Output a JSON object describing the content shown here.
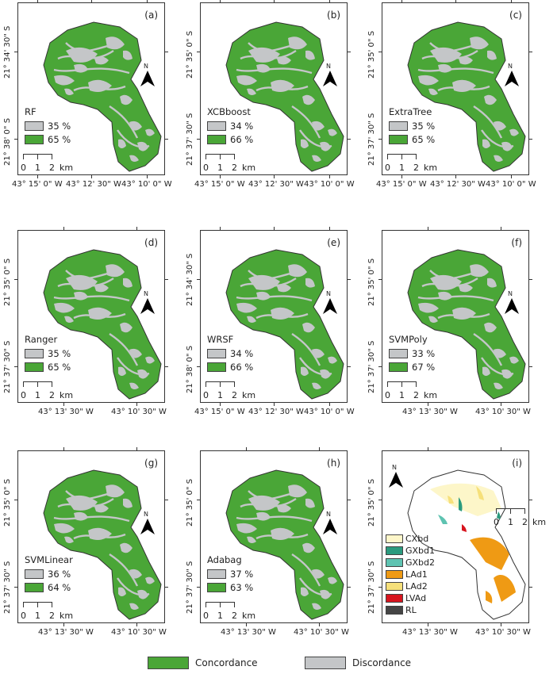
{
  "colors": {
    "concordance": "#4aa637",
    "discordance": "#c4c6c8"
  },
  "panels": [
    {
      "id": "a",
      "label": "(a)",
      "model": "RF",
      "disc": "35 %",
      "conc": "65 %",
      "ylabels": [
        "21° 34' 30\" S",
        "21° 38' 0\" S"
      ],
      "xlabels": [
        "43° 15' 0\" W",
        "43° 12' 30\" W",
        "43° 10' 0\" W"
      ]
    },
    {
      "id": "b",
      "label": "(b)",
      "model": "XCBboost",
      "disc": "34 %",
      "conc": "66 %",
      "ylabels": [
        "21° 35' 0\" S",
        "21° 37' 30\" S"
      ],
      "xlabels": [
        "43° 15' 0\" W",
        "43° 12' 30\" W",
        "43° 10' 0\" W"
      ]
    },
    {
      "id": "c",
      "label": "(c)",
      "model": "ExtraTree",
      "disc": "35 %",
      "conc": "65 %",
      "ylabels": [
        "21° 35' 0\" S",
        "21° 37' 30\" S"
      ],
      "xlabels": [
        "43° 15' 0\" W",
        "43° 12' 30\" W",
        "43° 10' 0\" W"
      ]
    },
    {
      "id": "d",
      "label": "(d)",
      "model": "Ranger",
      "disc": "35 %",
      "conc": "65 %",
      "ylabels": [
        "21° 35' 0\" S",
        "21° 37' 30\" S"
      ],
      "xlabels": [
        "43° 13' 30\" W",
        "43° 10' 30\" W"
      ]
    },
    {
      "id": "e",
      "label": "(e)",
      "model": "WRSF",
      "disc": "34 %",
      "conc": "66 %",
      "ylabels": [
        "21° 34' 30\" S",
        "21° 38' 0\" S"
      ],
      "xlabels": [
        "43° 15' 0\" W",
        "43° 12' 30\" W",
        "43° 10' 0\" W"
      ]
    },
    {
      "id": "f",
      "label": "(f)",
      "model": "SVMPoly",
      "disc": "33 %",
      "conc": "67 %",
      "ylabels": [
        "21° 35' 0\" S",
        "21° 37' 30\" S"
      ],
      "xlabels": [
        "43° 13' 30\" W",
        "43° 10' 30\" W"
      ]
    },
    {
      "id": "g",
      "label": "(g)",
      "model": "SVMLinear",
      "disc": "36 %",
      "conc": "64 %",
      "ylabels": [
        "21° 35' 0\" S",
        "21° 37' 30\" S"
      ],
      "xlabels": [
        "43° 13' 30\" W",
        "43° 10' 30\" W"
      ]
    },
    {
      "id": "h",
      "label": "(h)",
      "model": "Adabag",
      "disc": "37 %",
      "conc": "63 %",
      "ylabels": [
        "21° 35' 0\" S",
        "21° 37' 30\" S"
      ],
      "xlabels": [
        "43° 13' 30\" W",
        "43° 10' 30\" W"
      ]
    },
    {
      "id": "i",
      "label": "(i)",
      "ylabels": [
        "21° 35' 0\" S",
        "21° 37' 30\" S"
      ],
      "xlabels": [
        "43° 13' 30\" W",
        "43° 10' 30\" W"
      ]
    }
  ],
  "scale": {
    "zero": "0",
    "one": "1",
    "two": "2",
    "unit": "km"
  },
  "north": "N",
  "soil_classes": [
    {
      "code": "CXbd",
      "color": "#fdf6c9"
    },
    {
      "code": "GXbd1",
      "color": "#2a9a7e"
    },
    {
      "code": "GXbd2",
      "color": "#5ec3b1"
    },
    {
      "code": "LAd1",
      "color": "#ef9a14"
    },
    {
      "code": "LAd2",
      "color": "#f6e07a"
    },
    {
      "code": "LVAd",
      "color": "#d7141e"
    },
    {
      "code": "RL",
      "color": "#454545"
    }
  ],
  "footer": {
    "concordance": "Concordance",
    "discordance": "Discordance"
  }
}
